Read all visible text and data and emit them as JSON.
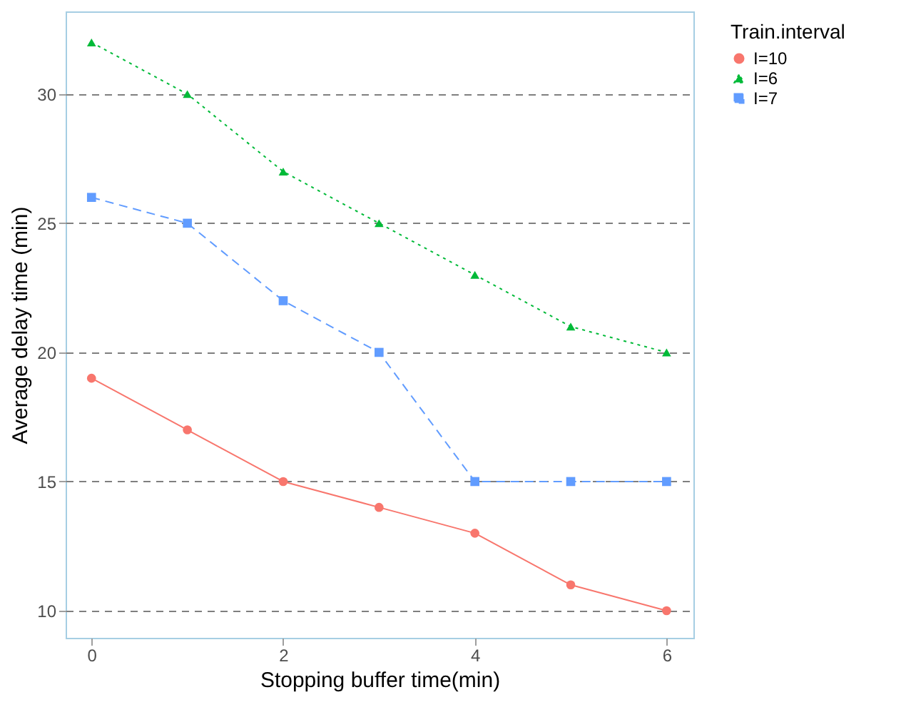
{
  "chart_data": {
    "type": "line",
    "xlabel": "Stopping buffer time(min)",
    "ylabel": "Average delay time (min)",
    "legend_title": "Train.interval",
    "x": [
      0,
      1,
      2,
      3,
      4,
      5,
      6
    ],
    "series": [
      {
        "name": "I=10",
        "color": "#f8766d",
        "values": [
          19,
          17,
          15,
          14,
          13,
          11,
          10
        ],
        "marker": "circle",
        "line_style": "solid"
      },
      {
        "name": "I=6",
        "color": "#00ba38",
        "values": [
          32,
          30,
          27,
          25,
          23,
          21,
          20
        ],
        "marker": "triangle",
        "line_style": "dotted"
      },
      {
        "name": "I=7",
        "color": "#619cff",
        "values": [
          26,
          25,
          22,
          20,
          15,
          15,
          15
        ],
        "marker": "square",
        "line_style": "dashed"
      }
    ],
    "xlim": [
      -0.27,
      6.28
    ],
    "xticks": [
      0,
      2,
      4,
      6
    ],
    "ylim": [
      8.95,
      33.2
    ],
    "yticks": [
      10,
      15,
      20,
      25,
      30
    ],
    "grid": "y",
    "legend": "right"
  }
}
